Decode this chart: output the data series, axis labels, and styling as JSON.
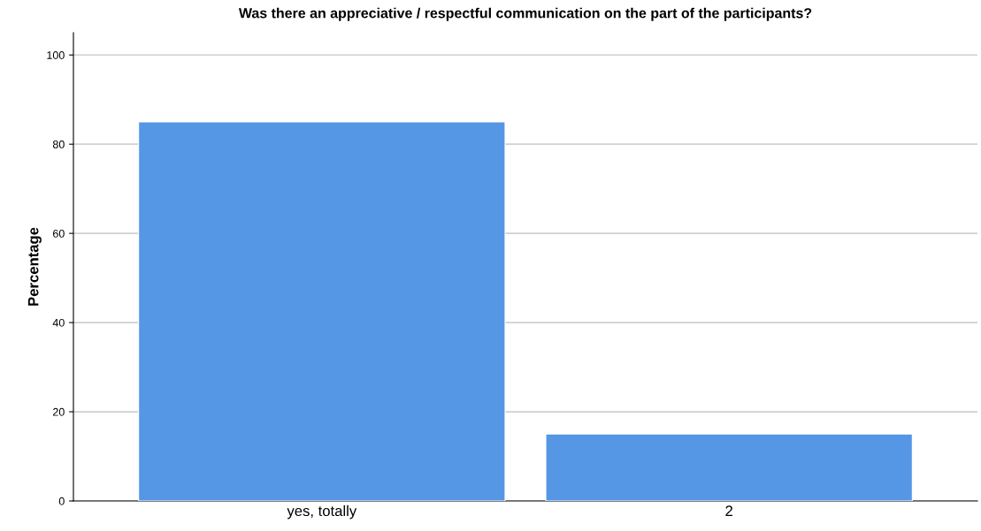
{
  "chart_data": {
    "type": "bar",
    "title": "Was there an appreciative / respectful communication on the part of the participants?",
    "ylabel": "Percentage",
    "categories": [
      "yes, totally",
      "2"
    ],
    "values": [
      85,
      15
    ],
    "color": "#5596e5",
    "ylim": [
      0,
      105
    ],
    "yticks": [
      0,
      20,
      40,
      60,
      80,
      100
    ],
    "grid": "y"
  }
}
